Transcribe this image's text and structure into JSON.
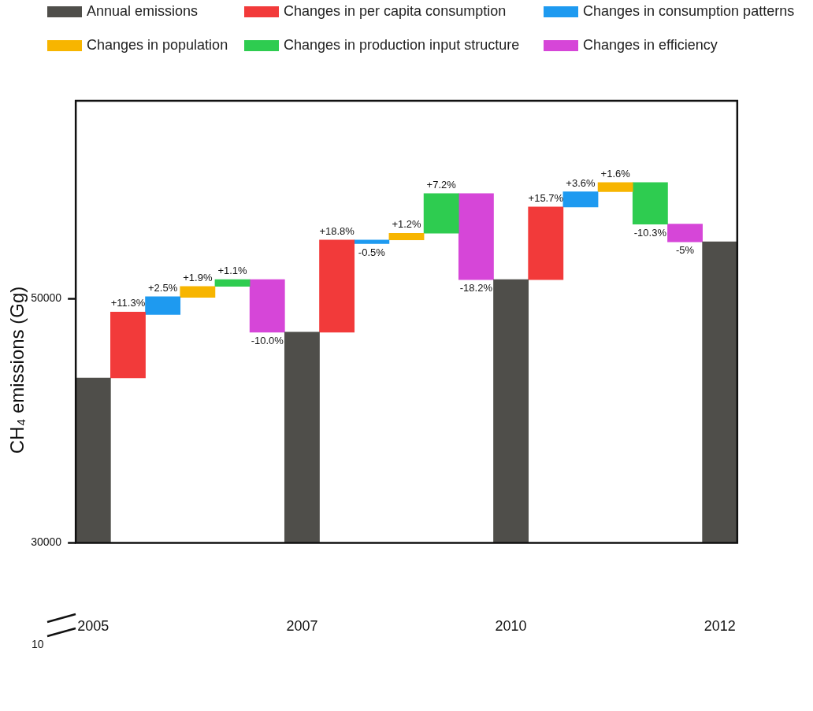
{
  "chart_data": {
    "type": "bar",
    "ylabel": "CH₄ emissions (Gg)",
    "categories": [
      "2005",
      null,
      null,
      null,
      null,
      null,
      "2007",
      null,
      null,
      null,
      null,
      null,
      "2010",
      null,
      null,
      null,
      null,
      null,
      "2012"
    ],
    "series": [
      {
        "name": "Annual emissions",
        "color": "#4f4e4a",
        "values": [
          43500,
          null,
          null,
          null,
          null,
          null,
          47250,
          null,
          null,
          null,
          null,
          null,
          51550,
          null,
          null,
          null,
          null,
          null,
          54650
        ]
      },
      {
        "name": "Changes in per capita consumption",
        "color": "#f23a3a",
        "values": [
          null,
          5400,
          null,
          null,
          null,
          null,
          null,
          7550,
          null,
          null,
          null,
          null,
          null,
          5950,
          null,
          null,
          null,
          null,
          null
        ],
        "base": [
          null,
          43500,
          null,
          null,
          null,
          null,
          null,
          47250,
          null,
          null,
          null,
          null,
          null,
          51550,
          null,
          null,
          null,
          null,
          null
        ]
      },
      {
        "name": "Changes in consumption patterns",
        "color": "#1e9af0",
        "values": [
          null,
          null,
          1450,
          null,
          null,
          null,
          null,
          null,
          -300,
          null,
          null,
          null,
          null,
          null,
          1250,
          null,
          null,
          null,
          null
        ],
        "base": [
          null,
          null,
          48700,
          null,
          null,
          null,
          null,
          null,
          54800,
          null,
          null,
          null,
          null,
          null,
          57500,
          null,
          null,
          null,
          null
        ]
      },
      {
        "name": "Changes in population",
        "color": "#f7b500",
        "values": [
          null,
          null,
          null,
          900,
          null,
          null,
          null,
          null,
          null,
          550,
          null,
          null,
          null,
          null,
          null,
          750,
          null,
          null,
          null
        ],
        "base": [
          null,
          null,
          null,
          50100,
          null,
          null,
          null,
          null,
          null,
          54800,
          null,
          null,
          null,
          null,
          null,
          58750,
          null,
          null,
          null
        ]
      },
      {
        "name": "Changes in production input structure",
        "color": "#2ecc50",
        "values": [
          null,
          null,
          null,
          null,
          550,
          null,
          null,
          null,
          null,
          null,
          3250,
          null,
          null,
          null,
          null,
          null,
          -3400,
          null,
          null
        ],
        "base": [
          null,
          null,
          null,
          null,
          51000,
          null,
          null,
          null,
          null,
          null,
          55350,
          null,
          null,
          null,
          null,
          null,
          59500,
          null,
          null
        ]
      },
      {
        "name": "Changes in efficiency",
        "color": "#d646d8",
        "values": [
          null,
          null,
          null,
          null,
          null,
          -4300,
          null,
          null,
          null,
          null,
          null,
          -7050,
          null,
          null,
          null,
          null,
          null,
          -1450,
          null
        ],
        "base": [
          null,
          null,
          null,
          null,
          null,
          51550,
          null,
          null,
          null,
          null,
          null,
          58600,
          null,
          null,
          null,
          null,
          null,
          56100,
          null
        ]
      }
    ],
    "ylim": [
      30000,
      66200
    ],
    "yticks": [
      30000,
      50000
    ],
    "grid": false,
    "legend": "top",
    "annotations": [
      "10",
      {
        "text": "+11.3%",
        "y": 48900
      },
      {
        "text": "+2.5%",
        "y": 50150
      },
      {
        "text": "+1.9%",
        "y": 51000
      },
      {
        "text": "+1.1%",
        "y": 51550
      },
      {
        "text": "-10.0%",
        "y": 47250
      },
      {
        "text": "+18.8%",
        "y": 54800
      },
      {
        "text": "-0.5%",
        "y": 54500
      },
      {
        "text": "+1.2%",
        "y": 55350
      },
      {
        "text": "+7.2%",
        "y": 58600
      },
      {
        "text": "-18.2%",
        "y": 51550
      },
      {
        "text": "+15.7%",
        "y": 57500
      },
      {
        "text": "+3.6%",
        "y": 58750
      },
      {
        "text": "+1.6%",
        "y": 59500
      },
      {
        "text": "-10.3%",
        "y": 56100
      },
      {
        "text": "-5%",
        "y": 54650
      }
    ]
  }
}
